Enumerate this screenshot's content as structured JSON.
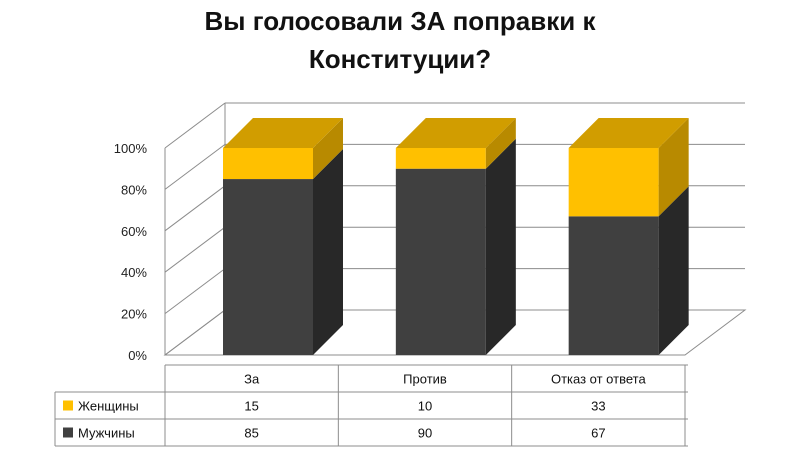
{
  "chart_data": {
    "type": "bar",
    "stacked": true,
    "percent_stacked": true,
    "three_d": true,
    "title_lines": [
      "Вы голосовали ЗА поправки к",
      "Конституции?"
    ],
    "categories": [
      "За",
      "Против",
      "Отказ от ответа"
    ],
    "series": [
      {
        "name": "Мужчины",
        "values": [
          85,
          90,
          67
        ],
        "color": "#404040"
      },
      {
        "name": "Женщины",
        "values": [
          15,
          10,
          33
        ],
        "color": "#ffc000"
      }
    ],
    "y_ticks": [
      "0%",
      "20%",
      "40%",
      "60%",
      "80%",
      "100%"
    ],
    "ylim": [
      0,
      100
    ],
    "grid": true,
    "legend": "data-table"
  }
}
